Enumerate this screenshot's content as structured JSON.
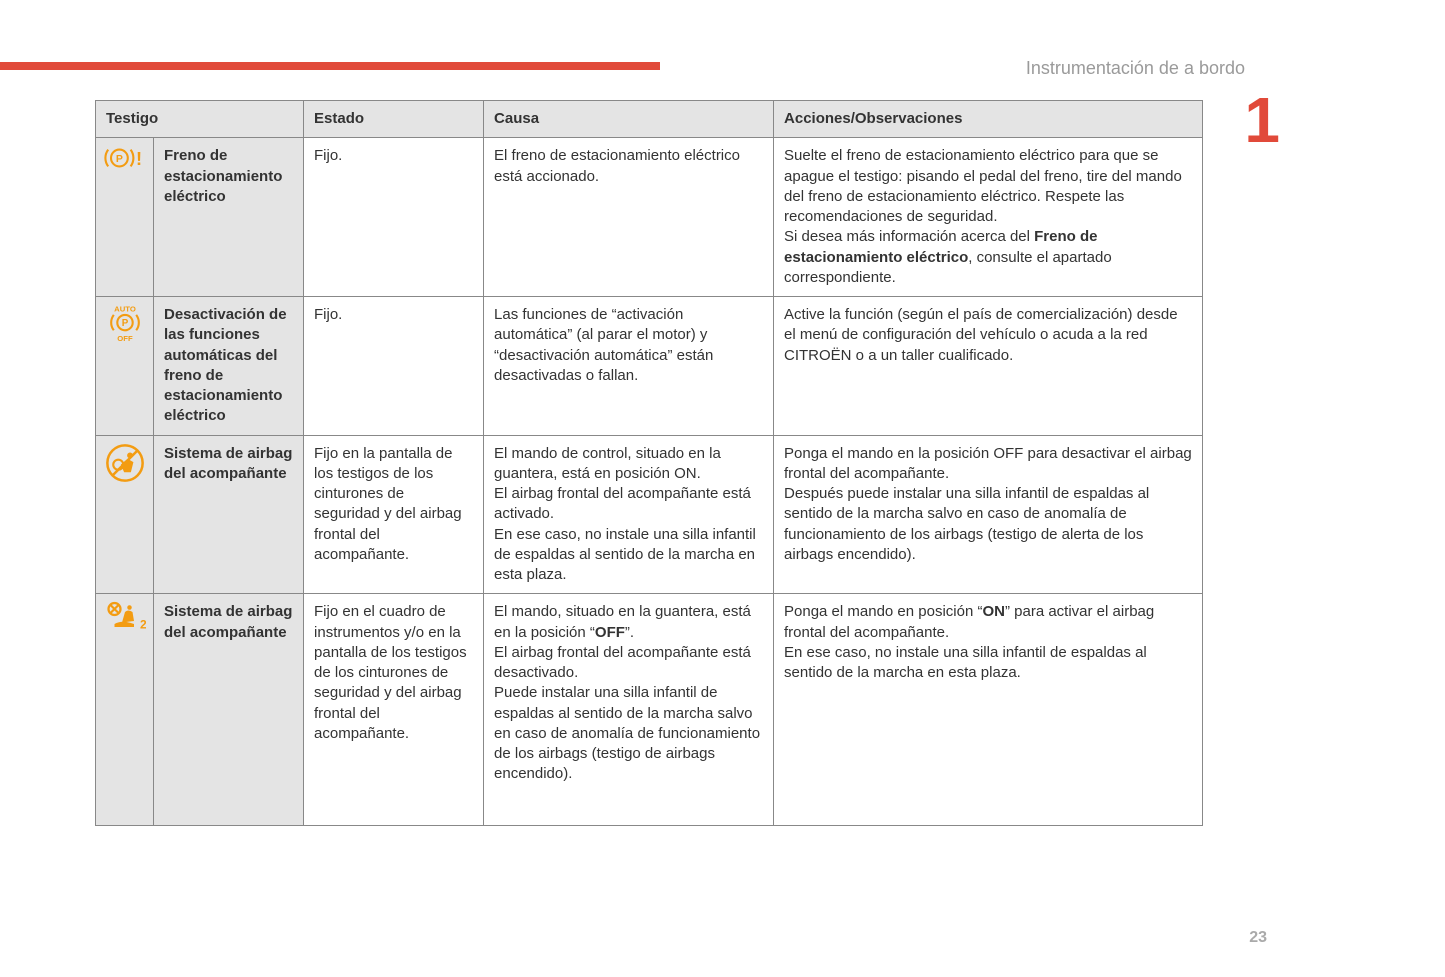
{
  "section_title": "Instrumentación de a bordo",
  "chapter_number": "1",
  "page_number": "23",
  "colors": {
    "accent": "#e14a3a",
    "icon_orange": "#f39c12",
    "header_bg": "#e4e4e4",
    "border": "#888888",
    "text": "#333333",
    "muted": "#9a9a9a"
  },
  "headers": {
    "testigo": "Testigo",
    "estado": "Estado",
    "causa": "Causa",
    "acciones": "Acciones/Observaciones"
  },
  "rows": [
    {
      "name": "Freno de estacionamiento eléctrico",
      "estado": "Fijo.",
      "causa": "El freno de estacionamiento eléctrico está accionado.",
      "accion_pre": "Suelte el freno de estacionamiento eléctrico para que se apague el testigo: pisando el pedal del freno, tire del mando del freno de estacionamiento eléctrico. Respete las recomendaciones de seguridad.\nSi desea más información acerca del ",
      "accion_bold": "Freno de estacionamiento eléctrico",
      "accion_post": ", consulte el apartado correspondiente."
    },
    {
      "name": "Desactivación de las funciones automáticas del freno de estacionamiento eléctrico",
      "estado": "Fijo.",
      "causa": "Las funciones de “activación automática” (al parar el motor) y “desactivación automática” están desactivadas o fallan.",
      "accion_pre": "Active la función (según el país de comercialización) desde el menú de configuración del vehículo o acuda a la red CITROËN o a un taller cualificado.",
      "accion_bold": "",
      "accion_post": ""
    },
    {
      "name": "Sistema de airbag del acompañante",
      "estado": "Fijo en la pantalla de los testigos de los cinturones de seguridad y del airbag frontal del acompañante.",
      "causa": "El mando de control, situado en la guantera, está en posición ON.\nEl airbag frontal del acompañante está activado.\nEn ese caso, no instale una silla infantil de espaldas al sentido de la marcha en esta plaza.",
      "accion_pre": "Ponga el mando en la posición OFF para desactivar el airbag frontal del acompañante.\nDespués puede instalar una silla infantil de espaldas al sentido de la marcha salvo en caso de anomalía de funcionamiento de los airbags (testigo de alerta de los airbags encendido).",
      "accion_bold": "",
      "accion_post": ""
    },
    {
      "name": "Sistema de airbag del acompañante",
      "estado": "Fijo en el cuadro de instrumentos y/o en la pantalla de los testigos de los cinturones de seguridad y del airbag frontal del acompañante.",
      "causa_pre": "El mando, situado en la guantera, está en la posición “",
      "causa_bold": "OFF",
      "causa_post": "”.\nEl airbag frontal del acompañante está desactivado.\nPuede instalar una silla infantil de espaldas al sentido de la marcha salvo en caso de anomalía de funcionamiento de los airbags (testigo de airbags encendido).",
      "accion_pre": "Ponga el mando en posición “",
      "accion_bold": "ON",
      "accion_post": "” para activar el airbag frontal del acompañante.\nEn ese caso, no instale una silla infantil de espaldas al sentido de la marcha en esta plaza."
    }
  ]
}
